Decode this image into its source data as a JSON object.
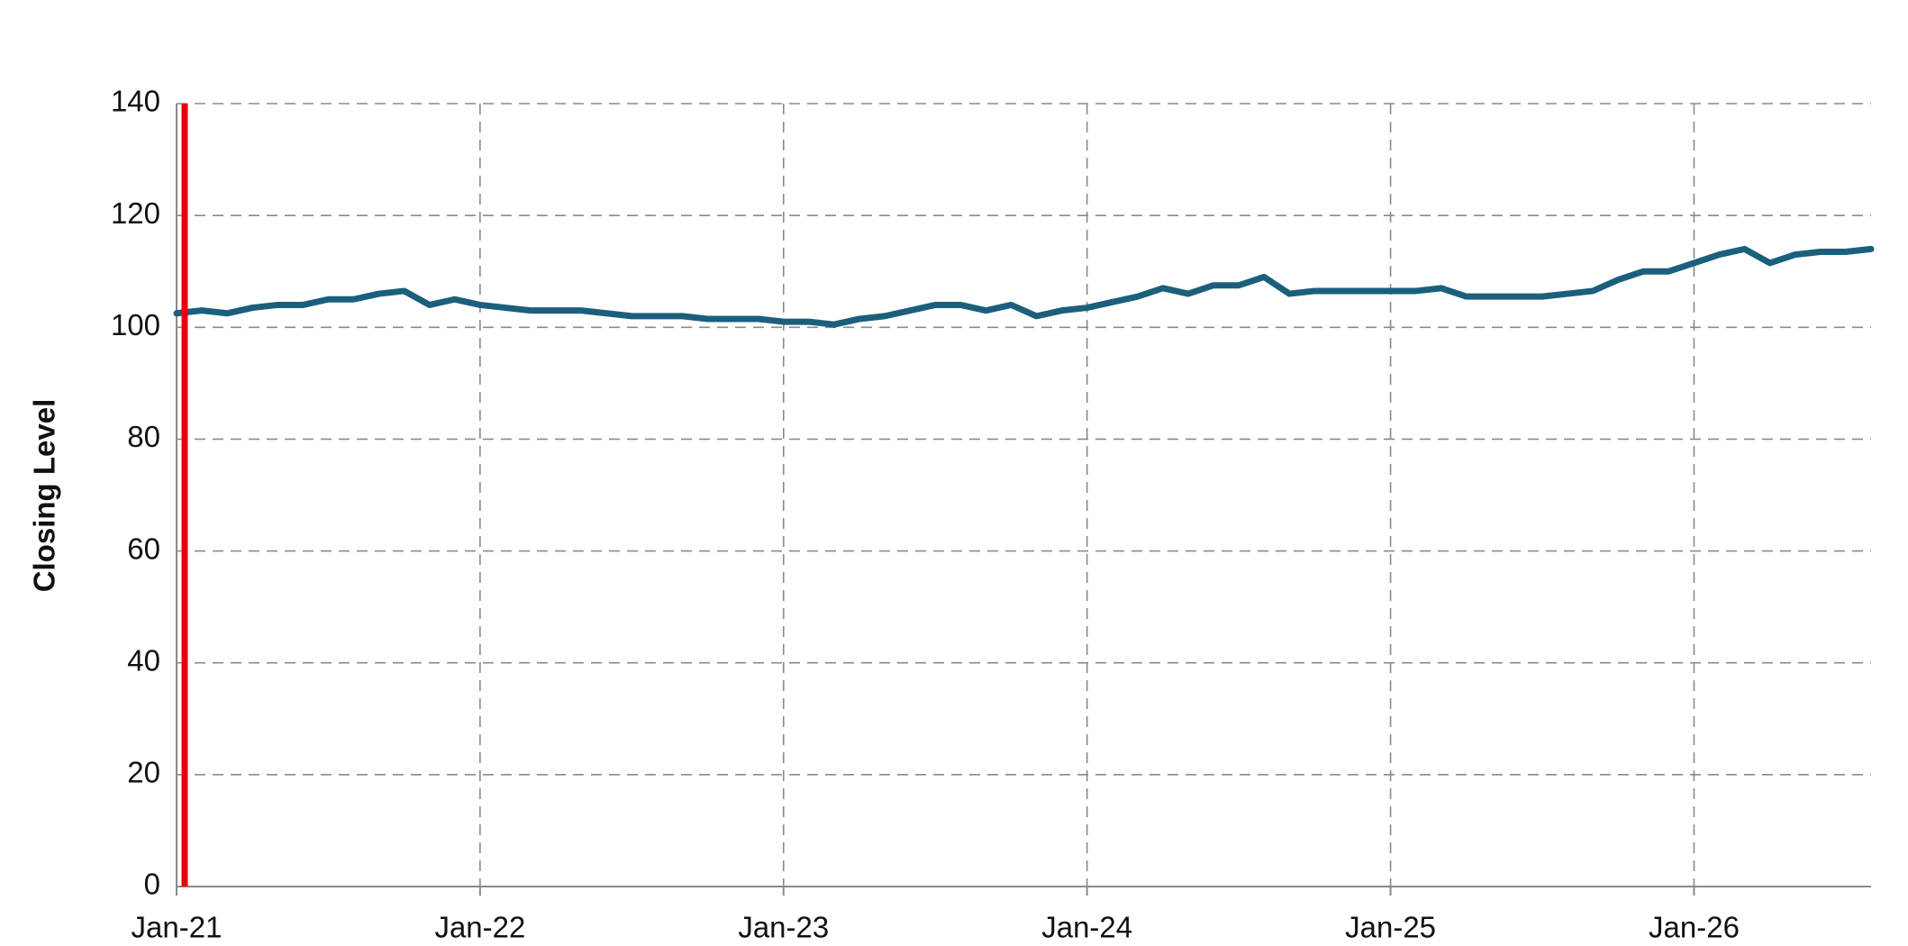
{
  "chart_data": {
    "type": "line",
    "y_label": "Closing Level",
    "x": [
      "Jan-21",
      "Feb-21",
      "Mar-21",
      "Apr-21",
      "May-21",
      "Jun-21",
      "Jul-21",
      "Aug-21",
      "Sep-21",
      "Oct-21",
      "Nov-21",
      "Dec-21",
      "Jan-22",
      "Feb-22",
      "Mar-22",
      "Apr-22",
      "May-22",
      "Jun-22",
      "Jul-22",
      "Aug-22",
      "Sep-22",
      "Oct-22",
      "Nov-22",
      "Dec-22",
      "Jan-23",
      "Feb-23",
      "Mar-23",
      "Apr-23",
      "May-23",
      "Jun-23",
      "Jul-23",
      "Aug-23",
      "Sep-23",
      "Oct-23",
      "Nov-23",
      "Dec-23",
      "Jan-24",
      "Feb-24",
      "Mar-24",
      "Apr-24",
      "May-24",
      "Jun-24",
      "Jul-24",
      "Aug-24",
      "Sep-24",
      "Oct-24",
      "Nov-24",
      "Dec-24",
      "Jan-25",
      "Feb-25",
      "Mar-25",
      "Apr-25",
      "May-25",
      "Jun-25",
      "Jul-25",
      "Aug-25",
      "Sep-25",
      "Oct-25",
      "Nov-25",
      "Dec-25",
      "Jan-26",
      "Feb-26",
      "Mar-26",
      "Apr-26",
      "May-26",
      "Jun-26",
      "Jul-26",
      "Aug-26"
    ],
    "series": [
      {
        "color": "#1c5f7c",
        "values": [
          102.5,
          103,
          102.5,
          103.5,
          104,
          104,
          105,
          105,
          106,
          106.5,
          104,
          105,
          104,
          103.5,
          103,
          103,
          103,
          102.5,
          102,
          102,
          102,
          101.5,
          101.5,
          101.5,
          101,
          101,
          100.5,
          101.5,
          102,
          103,
          104,
          104,
          103,
          104,
          102,
          103,
          103.5,
          104.5,
          105.5,
          107,
          106,
          107.5,
          107.5,
          109,
          106,
          106.5,
          106.5,
          106.5,
          106.5,
          106.5,
          107,
          105.5,
          105.5,
          105.5,
          105.5,
          106,
          106.5,
          108.5,
          110,
          110,
          111.5,
          113,
          114,
          111.5,
          113,
          113.5,
          113.5,
          114
        ]
      }
    ],
    "xlim": [
      "Jan-21",
      "Aug-26"
    ],
    "xticks": [
      "Jan-21",
      "Jan-22",
      "Jan-23",
      "Jan-24",
      "Jan-25",
      "Jan-26"
    ],
    "ylim": [
      0,
      140
    ],
    "yticks": [
      0,
      20,
      40,
      60,
      80,
      100,
      120,
      140
    ],
    "grid": true,
    "reference_line": {
      "x": "Jan-21",
      "color": "#e8000b"
    }
  }
}
